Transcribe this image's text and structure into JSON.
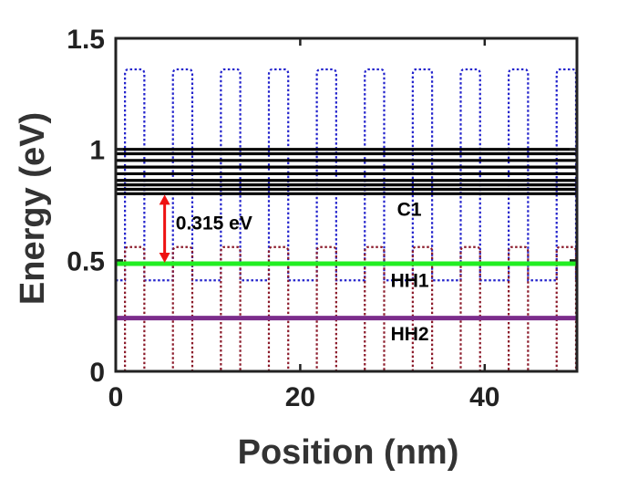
{
  "chart_data": {
    "type": "line",
    "title": "",
    "xlabel": "Position (nm)",
    "ylabel": "Energy (eV)",
    "xlim": [
      0,
      50
    ],
    "ylim": [
      0,
      1.5
    ],
    "xticks": [
      0,
      20,
      40
    ],
    "yticks": [
      0,
      0.5,
      1,
      1.5
    ],
    "xtick_labels": [
      "0",
      "20",
      "40"
    ],
    "ytick_labels": [
      "0",
      "0.5",
      "1",
      "1.5"
    ],
    "grid": false,
    "conduction_band": {
      "color": "#2222cc",
      "style": "dotted",
      "low": 0.41,
      "high": 1.36,
      "barrier_starts": [
        1.0,
        6.2,
        11.4,
        16.6,
        21.8,
        27.0,
        32.2,
        37.4,
        42.6,
        47.8
      ],
      "barrier_width": 2.1
    },
    "valence_band": {
      "color": "#8b1a2a",
      "style": "dotted",
      "low": 0.0,
      "high": 0.56,
      "barrier_starts": [
        1.0,
        6.2,
        11.4,
        16.6,
        21.8,
        27.0,
        32.2,
        37.4,
        42.6,
        47.8
      ],
      "barrier_width": 2.1
    },
    "conduction_levels": {
      "color": "#000000",
      "energies": [
        0.8,
        0.82,
        0.84,
        0.86,
        0.89,
        0.92,
        0.95,
        0.98,
        1.0
      ]
    },
    "levels": [
      {
        "label": "C1",
        "energy": 0.8,
        "color": "#000000"
      },
      {
        "label": "HH1",
        "energy": 0.485,
        "color": "#22ee22"
      },
      {
        "label": "HH2",
        "energy": 0.24,
        "color": "#7b2d8b"
      }
    ],
    "annotations": [
      {
        "text": "0.315 eV",
        "x": 6.5,
        "y": 0.64
      },
      {
        "text": "C1",
        "x": 30.5,
        "y": 0.7
      },
      {
        "text": "HH1",
        "x": 29.8,
        "y": 0.38
      },
      {
        "text": "HH2",
        "x": 29.8,
        "y": 0.14
      }
    ],
    "gap_arrow": {
      "x": 5.3,
      "from": 0.485,
      "to": 0.8,
      "color": "#ee1111"
    }
  }
}
